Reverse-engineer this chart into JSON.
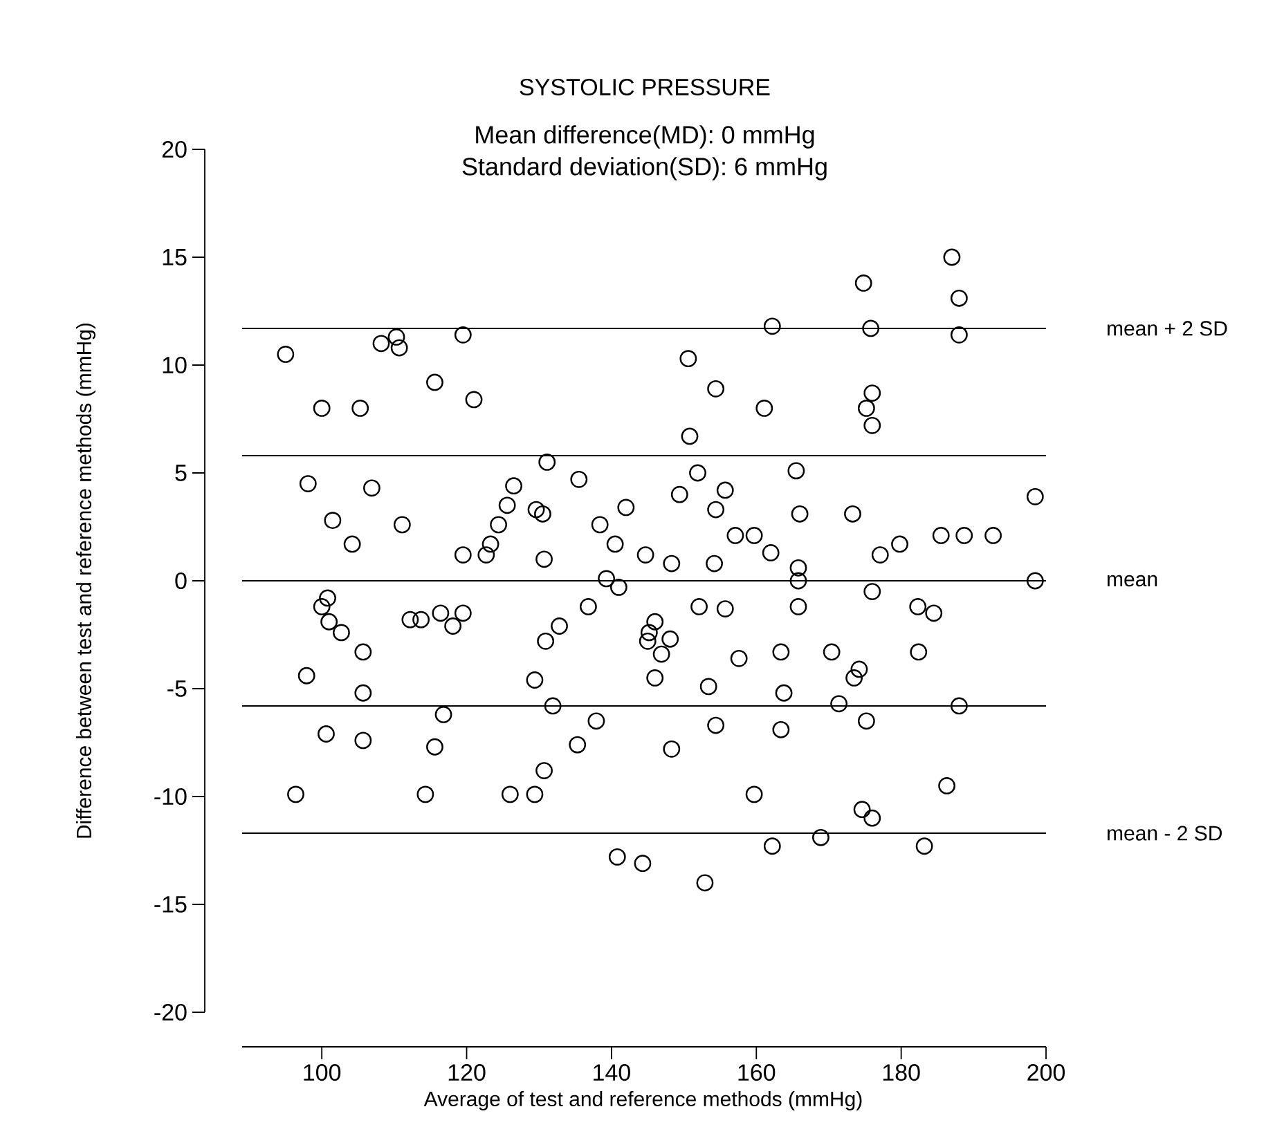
{
  "chart_data": {
    "type": "scatter",
    "title": "SYSTOLIC PRESSURE",
    "subtitle": "Mean difference(MD): 0 mmHg",
    "annotations": [
      "Standard deviation(SD): 6 mmHg"
    ],
    "xlabel": "Average of test and reference methods (mmHg)",
    "ylabel": "Difference between test and reference methods (mmHg)",
    "xlim": [
      89,
      200
    ],
    "xticks": [
      100,
      120,
      140,
      160,
      180,
      200
    ],
    "ylim": [
      -20,
      20
    ],
    "yticks": [
      -20,
      -15,
      -10,
      -5,
      0,
      5,
      10,
      15,
      20
    ],
    "marker": "circle",
    "color": "#000000",
    "x": [
      95.0,
      96.4,
      98.1,
      97.9,
      100.0,
      100.0,
      100.8,
      100.6,
      101.0,
      101.5,
      102.7,
      104.2,
      105.3,
      105.7,
      105.7,
      105.7,
      106.9,
      108.2,
      110.3,
      110.7,
      111.1,
      112.2,
      113.7,
      114.3,
      115.6,
      115.6,
      116.4,
      116.8,
      118.1,
      119.5,
      119.5,
      119.5,
      121.0,
      122.7,
      123.3,
      124.4,
      125.6,
      126.5,
      126.0,
      129.4,
      129.4,
      129.6,
      130.5,
      130.7,
      130.9,
      131.1,
      130.7,
      131.9,
      132.8,
      135.3,
      135.5,
      136.8,
      137.9,
      138.4,
      139.3,
      140.5,
      141.0,
      142.0,
      140.8,
      144.3,
      144.7,
      145.0,
      145.2,
      146.0,
      146.0,
      146.9,
      148.1,
      148.3,
      148.3,
      149.4,
      150.6,
      150.8,
      151.9,
      152.1,
      152.9,
      153.4,
      154.2,
      154.4,
      154.4,
      154.4,
      155.7,
      155.7,
      157.1,
      157.6,
      159.7,
      159.7,
      161.1,
      162.0,
      162.2,
      162.2,
      163.4,
      163.4,
      163.8,
      165.5,
      165.8,
      165.8,
      165.8,
      166.0,
      168.9,
      170.4,
      171.4,
      173.3,
      173.5,
      174.2,
      174.6,
      174.8,
      175.2,
      175.2,
      176.0,
      176.0,
      175.8,
      176.0,
      176.0,
      177.1,
      179.8,
      182.3,
      182.4,
      183.2,
      184.5,
      185.5,
      186.3,
      187.0,
      188.0,
      188.0,
      188.0,
      188.7,
      192.7,
      198.5,
      198.5
    ],
    "values": [
      10.5,
      -9.9,
      4.5,
      -4.4,
      8.0,
      -1.2,
      -0.8,
      -7.1,
      -1.9,
      2.8,
      -2.4,
      1.7,
      8.0,
      -3.3,
      -5.2,
      -7.4,
      4.3,
      11.0,
      11.3,
      10.8,
      2.6,
      -1.8,
      -1.8,
      -9.9,
      9.2,
      -7.7,
      -1.5,
      -6.2,
      -2.1,
      -1.5,
      11.4,
      1.2,
      8.4,
      1.2,
      1.7,
      2.6,
      3.5,
      4.4,
      -9.9,
      -9.9,
      -4.6,
      3.3,
      3.1,
      1.0,
      -2.8,
      5.5,
      -8.8,
      -5.8,
      -2.1,
      -7.6,
      4.7,
      -1.2,
      -6.5,
      2.6,
      0.1,
      1.7,
      -0.3,
      3.4,
      -12.8,
      -13.1,
      1.2,
      -2.8,
      -2.4,
      -1.9,
      -4.5,
      -3.4,
      -2.7,
      0.8,
      -7.8,
      4.0,
      10.3,
      6.7,
      5.0,
      -1.2,
      -14.0,
      -4.9,
      0.8,
      3.3,
      8.9,
      -6.7,
      4.2,
      -1.3,
      2.1,
      -3.6,
      2.1,
      -9.9,
      8.0,
      1.3,
      11.8,
      -12.3,
      -3.3,
      -6.9,
      -5.2,
      5.1,
      0.6,
      -1.2,
      0.0,
      3.1,
      -11.9,
      -3.3,
      -5.7,
      3.1,
      -4.5,
      -4.1,
      -10.6,
      13.8,
      -6.5,
      8.0,
      8.7,
      7.2,
      11.7,
      -0.5,
      -11.0,
      1.2,
      1.7,
      -1.2,
      -3.3,
      -12.3,
      -1.5,
      2.1,
      -9.5,
      15.0,
      13.1,
      11.4,
      -5.8,
      2.1,
      2.1,
      3.9,
      0.0
    ],
    "ref_lines": [
      {
        "axis": "y",
        "value": 11.7,
        "label": "mean + 2 SD"
      },
      {
        "axis": "y",
        "value": 5.8
      },
      {
        "axis": "y",
        "value": 0,
        "label": "mean"
      },
      {
        "axis": "y",
        "value": -5.8
      },
      {
        "axis": "y",
        "value": -11.7,
        "label": "mean - 2 SD"
      }
    ]
  }
}
